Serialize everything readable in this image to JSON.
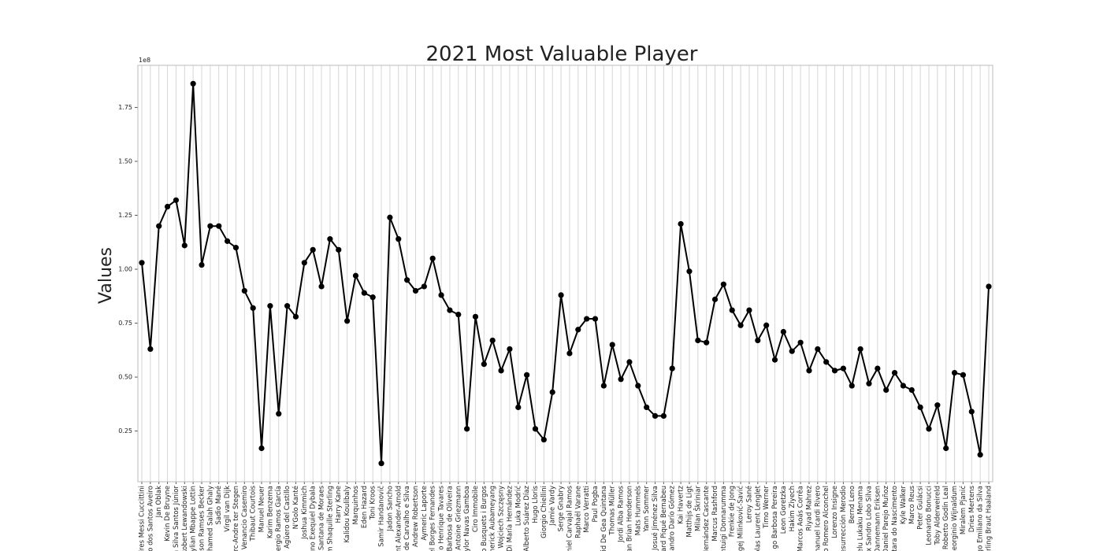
{
  "chart_data": {
    "type": "line",
    "title": "2021 Most Valuable Player",
    "y_label": "Values",
    "y_offset_label": "1e8",
    "categories": [
      "dres Messi Cuccittini",
      "do dos Santos Aveiro",
      "Jan Oblak",
      "Kevin De Bruyne",
      "a Silva Santos Júnior",
      "Robert Lewandowski",
      "Kylian Mbappe Lottin",
      "son Ramses Becker",
      "ohamed Salah Ghaly",
      "Sadio Mané",
      "Virgil van Dijk",
      "arc-Andre ter Stegen",
      "e Venancio Casemiro",
      "Thibaut Courtois",
      "Manuel Neuer",
      "Karim Benzema",
      "ergio Ramos García",
      "el Agüero del Castillo",
      "N'Golo Kanté",
      "Joshua Kimmich",
      "uno Exequiel Dybala",
      "a Santana de Moraes",
      "m Shaquille Sterling",
      "Harry Kane",
      "Kalidou Koulibaly",
      "Marquinhos",
      "Eden Hazard",
      "Toni Kroos",
      "Samir Handanovič",
      "Jadon Sancho",
      "nt Alexander-Arnold",
      "a de Carvalho e Silva",
      "Andrew Robertson",
      "Aymeric Laporte",
      "el Borges Fernandes",
      "o Henrique Tavares",
      "Barbosa de Oliveira",
      "Antoine Griezmann",
      "eylor Navas Gamboa",
      "Ciro Immobile",
      "o Busquets i Burgos",
      "merick Aubameyang",
      "Wojciech Szczęsny",
      "Di María Hernández",
      "Luka Modrić",
      "Alberto Suárez Díaz",
      "Hugo Lloris",
      "Giorgio Chiellini",
      "Jamie Vardy",
      "Serge Gnabry",
      "niel Carvajal Ramos",
      "Raphaël Varane",
      "Marco Verratti",
      "Paul Pogba",
      "vid De Gea Quintana",
      "Thomas Müller",
      "Jordi Alba Ramos",
      "dan Brian Henderson",
      "Mats Hummels",
      "Yann Sommer",
      "Josué Jiménez Silva",
      "rard Piqué Bernabeu",
      "ejandro Darío Gómez",
      "Kai Havertz",
      "Matthijs de Ligt",
      "Milan Škriniar",
      "Hernández Cascante",
      "Marcus Rashford",
      "antuigi Donnarumma",
      "Frenkie de Jong",
      "rgej Milinković-Savić",
      "Leroy Sané",
      "colas Laurent Lenglet",
      "Timo Werner",
      "go Barbosa Pereira",
      "Leon Goretzka",
      "Hakim Ziyech",
      "Marcos Aoás Corrêa",
      "Riyad Mahrez",
      "manuel Icardi Rivero",
      "o Romero Alconchel",
      "Lorenzo Insigne",
      "esurrección Merodio",
      "Bernd Leno",
      "elu Lukaku Menama",
      "x Sandro Lobo Silva",
      "Dannemann Eriksen",
      "Daniel Parejo Muñoz",
      "ntara do Nascimento",
      "Kyle Walker",
      "Marco Reus",
      "Peter Gulácsi",
      "Leonardo Bonucci",
      "Toby Alderweireld",
      "s Roberto Godín Leal",
      "Georginio Wijnaldum",
      "Miralem Pjanić",
      "Dries Mertens",
      "go Emiliano da Silva",
      "Erling Braut Haaland"
    ],
    "series": [
      {
        "name": "Values",
        "color": "#000000",
        "values": [
          1.03,
          0.63,
          1.2,
          1.29,
          1.32,
          1.11,
          1.86,
          1.02,
          1.2,
          1.2,
          1.13,
          1.1,
          0.9,
          0.82,
          0.17,
          0.83,
          0.33,
          0.83,
          0.78,
          1.03,
          1.09,
          0.92,
          1.14,
          1.09,
          0.76,
          0.97,
          0.89,
          0.87,
          0.1,
          1.24,
          1.14,
          0.95,
          0.9,
          0.92,
          1.05,
          0.88,
          0.81,
          0.79,
          0.26,
          0.78,
          0.56,
          0.67,
          0.53,
          0.63,
          0.36,
          0.51,
          0.26,
          0.21,
          0.43,
          0.88,
          0.61,
          0.72,
          0.77,
          0.77,
          0.46,
          0.65,
          0.49,
          0.57,
          0.46,
          0.36,
          0.32,
          0.32,
          0.54,
          1.21,
          0.99,
          0.67,
          0.66,
          0.86,
          0.93,
          0.81,
          0.74,
          0.81,
          0.67,
          0.74,
          0.58,
          0.71,
          0.62,
          0.66,
          0.53,
          0.63,
          0.57,
          0.53,
          0.54,
          0.46,
          0.63,
          0.47,
          0.54,
          0.44,
          0.52,
          0.46,
          0.44,
          0.36,
          0.26,
          0.37,
          0.17,
          0.52,
          0.51,
          0.34,
          0.14,
          0.92
        ]
      }
    ],
    "ylim": [
      0.015,
      1.945
    ],
    "yticks": [
      0.25,
      {
        "value": 0.5,
        "label": "0.50"
      },
      0.75,
      {
        "value": 1.0,
        "label": "1.00"
      },
      1.25,
      {
        "value": 1.5,
        "label": "1.50"
      },
      1.75
    ],
    "xgrid": true
  }
}
